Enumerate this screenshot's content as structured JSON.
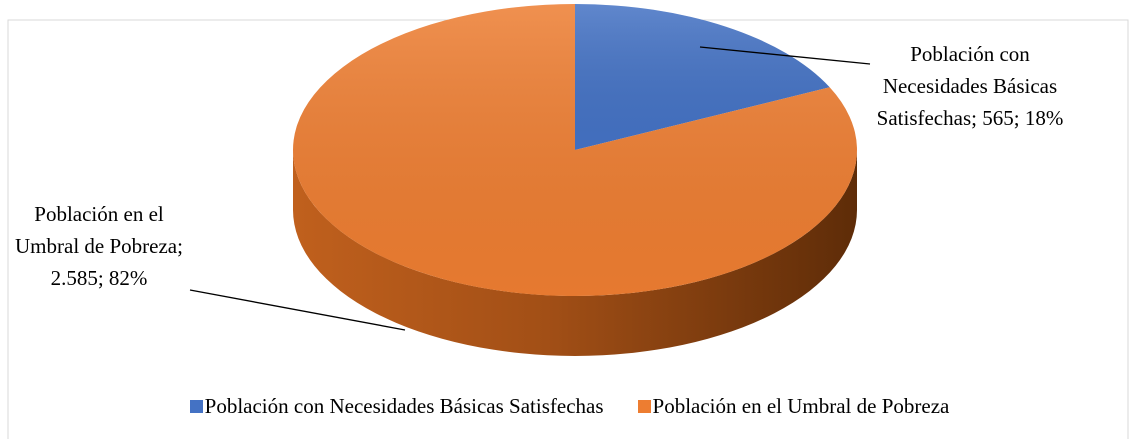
{
  "chart_data": {
    "type": "pie",
    "categories": [
      "Población con Necesidades Básicas Satisfechas",
      "Población en el Umbral de Pobreza"
    ],
    "values": [
      565,
      2585
    ],
    "value_labels": [
      "565",
      "2.585"
    ],
    "percents": [
      18,
      82
    ],
    "percent_labels": [
      "18%",
      "82%"
    ],
    "colors": [
      "#4472c4",
      "#ed7d31"
    ],
    "legend": "bottom"
  }
}
